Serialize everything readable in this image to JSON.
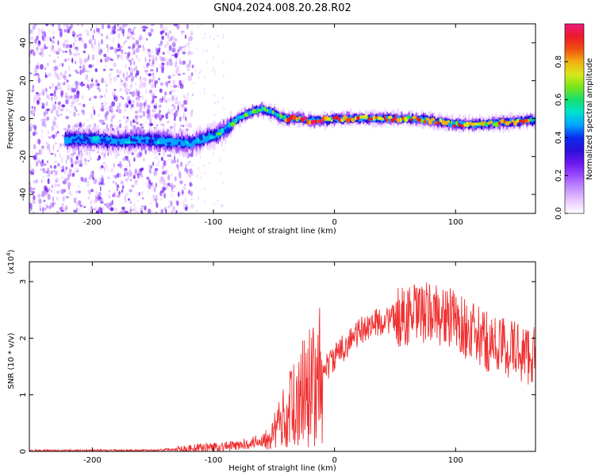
{
  "title": "GN04.2024.008.20.28.R02",
  "colors": {
    "snr_line": "#f03030",
    "axis": "#000000",
    "background": "#ffffff"
  },
  "colormap": [
    "#ffffff",
    "#e9c8ff",
    "#c490ff",
    "#9a4cff",
    "#6a16ef",
    "#2a10d8",
    "#0a2cf0",
    "#00a6ff",
    "#00e0d0",
    "#16e06a",
    "#7ae61a",
    "#d8e81a",
    "#f2b010",
    "#f05010",
    "#ea1a2a",
    "#f01a7a"
  ],
  "chart_data": [
    {
      "type": "heatmap",
      "xlabel": "Height of straight line (km)",
      "ylabel": "Frequency (Hz)",
      "xlim": [
        -252,
        166
      ],
      "ylim": [
        -50,
        50
      ],
      "xticks": [
        -200,
        -100,
        0,
        100
      ],
      "yticks": [
        -40,
        -20,
        0,
        20,
        40
      ],
      "colorbar": {
        "label": "Normalized spectral amplitude",
        "range": [
          0,
          1
        ],
        "ticks": [
          0.0,
          0.2,
          0.4,
          0.6,
          0.8
        ]
      },
      "ridge": {
        "x": [
          -222,
          -200,
          -180,
          -160,
          -140,
          -120,
          -110,
          -100,
          -90,
          -85,
          -80,
          -70,
          -60,
          -50,
          -45,
          -40,
          -30,
          -20,
          -10,
          0,
          20,
          40,
          60,
          80,
          100,
          120,
          140,
          160
        ],
        "y": [
          -11,
          -11,
          -12,
          -11,
          -12,
          -13,
          -11,
          -9,
          -6,
          -3,
          0,
          3,
          5,
          3,
          1,
          0,
          0,
          -1,
          -1,
          0,
          0,
          0,
          0,
          -1,
          -3,
          -3,
          -2,
          -1
        ]
      }
    },
    {
      "type": "line",
      "xlabel": "Height of straight line (km)",
      "ylabel": "SNR (10 * v/v)",
      "yscale_label": "(x10",
      "yscale_exp": "4",
      "xlim": [
        -252,
        166
      ],
      "ylim": [
        0,
        3.35
      ],
      "xticks": [
        -200,
        -100,
        0,
        100
      ],
      "yticks": [
        0,
        1,
        2,
        3
      ],
      "envelope": {
        "x": [
          -252,
          -150,
          -120,
          -100,
          -80,
          -70,
          -60,
          -50,
          -40,
          -30,
          -20,
          -10,
          0,
          10,
          20,
          30,
          40,
          50,
          60,
          70,
          80,
          90,
          100,
          110,
          120,
          130,
          140,
          150,
          160,
          166
        ],
        "y": [
          0.01,
          0.02,
          0.05,
          0.08,
          0.1,
          0.15,
          0.2,
          0.35,
          0.65,
          1.0,
          1.2,
          1.4,
          1.65,
          1.9,
          2.1,
          2.25,
          2.3,
          2.35,
          2.4,
          2.42,
          2.45,
          2.4,
          2.3,
          2.15,
          2.0,
          1.9,
          1.85,
          1.8,
          1.7,
          1.75
        ]
      }
    }
  ]
}
